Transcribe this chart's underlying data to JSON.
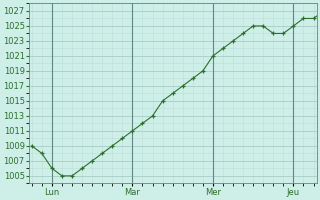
{
  "background_color": "#ceeee8",
  "plot_bg_color": "#ceeee8",
  "grid_major_color": "#a8ccc6",
  "grid_minor_color": "#bdddd8",
  "line_color": "#2d6e2d",
  "x_tick_labels": [
    "Lun",
    "Mar",
    "Mer",
    "Jeu"
  ],
  "x_tick_positions": [
    2,
    10,
    18,
    26
  ],
  "y_ticks": [
    1005,
    1007,
    1009,
    1011,
    1013,
    1015,
    1017,
    1019,
    1021,
    1023,
    1025,
    1027
  ],
  "ylim": [
    1004.0,
    1028.0
  ],
  "xlim": [
    -0.3,
    28.3
  ],
  "values": [
    1009,
    1008,
    1006,
    1005,
    1005,
    1006,
    1007,
    1008,
    1009,
    1010,
    1011,
    1012,
    1013,
    1015,
    1016,
    1017,
    1018,
    1019,
    1021,
    1022,
    1023,
    1024,
    1025,
    1025,
    1024,
    1024,
    1025,
    1026,
    1026,
    1027
  ],
  "vline_positions": [
    2,
    10,
    18,
    26
  ],
  "tick_fontsize": 6.0
}
